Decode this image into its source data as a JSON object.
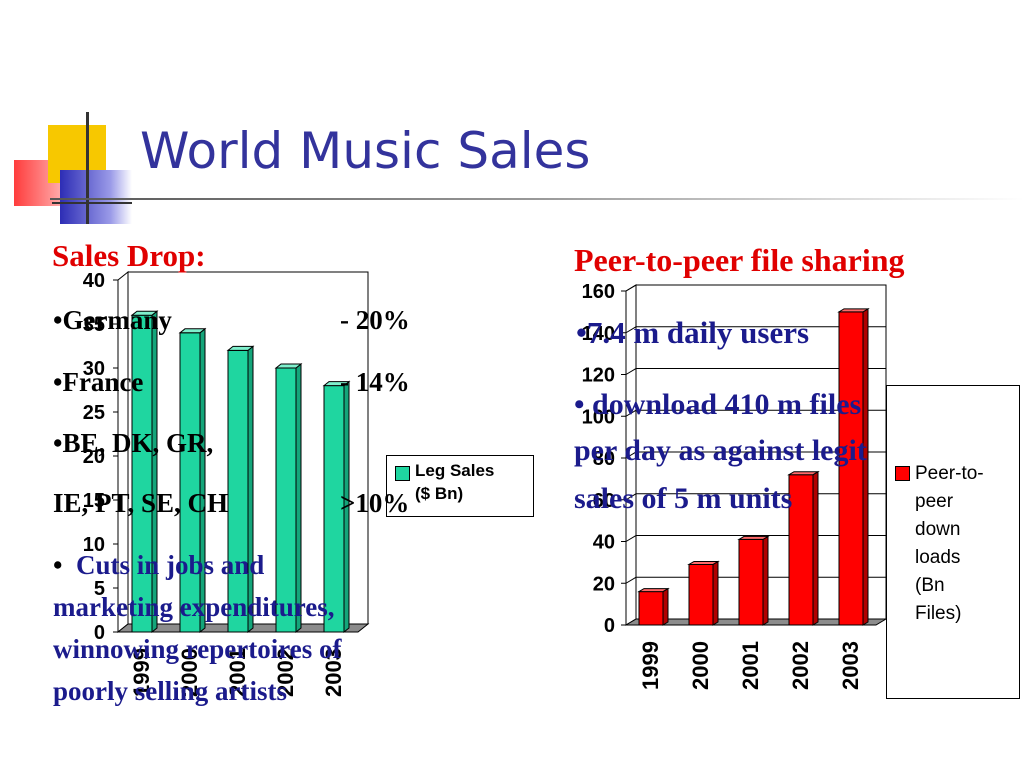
{
  "slide": {
    "title": "World Music Sales"
  },
  "left_text": {
    "heading": "Sales Drop:",
    "lines": [
      {
        "label": "•Germany",
        "value": "- 20%"
      },
      {
        "label": "•France",
        "value": "- 14%"
      },
      {
        "label": "•BE, DK, GR,",
        "value": ""
      },
      {
        "label": "IE, PT, SE, CH",
        "value": ">10%"
      }
    ],
    "bullet": "•",
    "cuts_line1": "Cuts in jobs and",
    "cuts_line2": "marketing expenditures,",
    "cuts_line3": "winnowing repertoires of",
    "cuts_line4": "poorly selling artists"
  },
  "right_text": {
    "heading": "Peer-to-peer file sharing",
    "bullet1": "•7.4 m daily users",
    "bullet2_line1": "• download 410 m files",
    "bullet2_line2": "per day as against legit",
    "bullet2_line3": "sales of 5 m units"
  },
  "colors": {
    "title": "#33339c",
    "red_text": "#e00000",
    "navy_text": "#1b1b8c",
    "green_bar": "#1fd6a0",
    "red_bar": "#ff0000"
  },
  "chart_data": [
    {
      "type": "bar",
      "categories": [
        "1999",
        "2000",
        "2001",
        "2002",
        "2003"
      ],
      "series": [
        {
          "name": "Leg Sales ($ Bn)",
          "values": [
            36,
            34,
            32,
            30,
            28
          ]
        }
      ],
      "ylim": [
        0,
        40
      ],
      "yticks": [
        "0",
        "5",
        "10",
        "15",
        "20",
        "25",
        "30",
        "35",
        "40"
      ],
      "legend": {
        "line1": "Leg Sales",
        "line2": "($ Bn)"
      },
      "legend_position": "right",
      "grid": false
    },
    {
      "type": "bar",
      "categories": [
        "1999",
        "2000",
        "2001",
        "2002",
        "2003"
      ],
      "series": [
        {
          "name": "Peer-to-peer down loads (Bn Files)",
          "values": [
            16,
            29,
            41,
            72,
            150
          ]
        }
      ],
      "ylim": [
        0,
        160
      ],
      "yticks": [
        "0",
        "20",
        "40",
        "60",
        "80",
        "100",
        "120",
        "140",
        "160"
      ],
      "legend": {
        "lines": [
          "Peer-to-",
          "peer",
          "down",
          "loads",
          "(Bn",
          "Files)"
        ]
      },
      "legend_position": "right",
      "grid": true
    }
  ]
}
